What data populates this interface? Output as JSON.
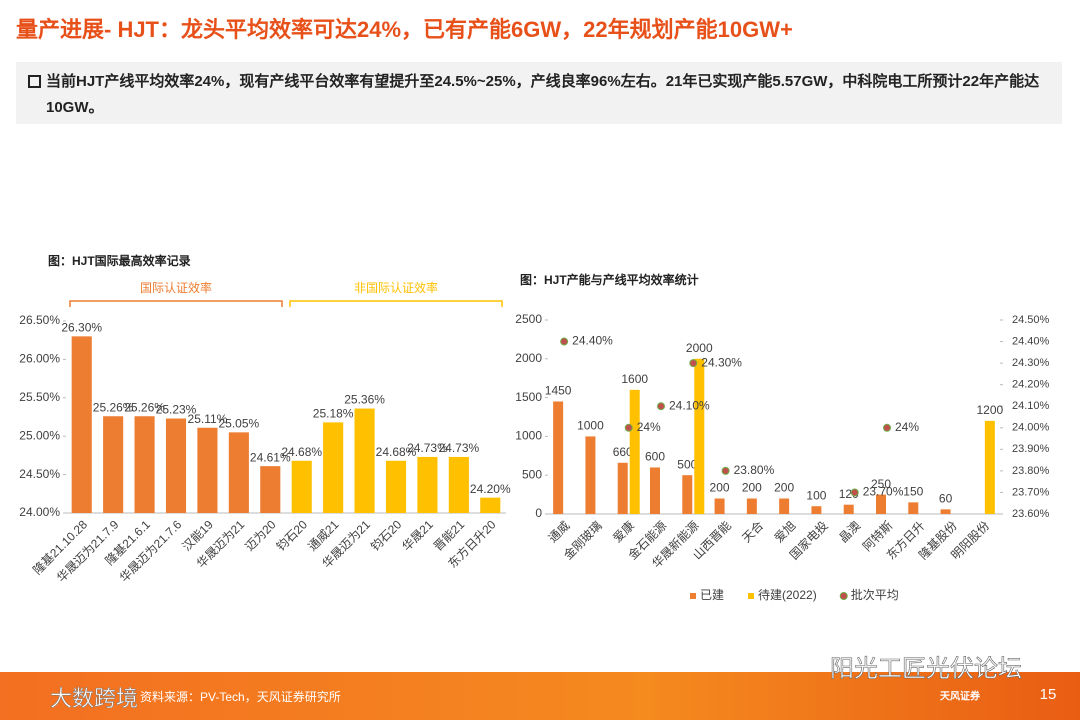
{
  "header": {
    "title": "量产进展- HJT：龙头平均效率可达24%，已有产能6GW，22年规划产能10GW+"
  },
  "summary": "当前HJT产线平均效率24%，现有产线平台效率有望提升至24.5%~25%，产线良率96%左右。21年已实现产能5.57GW，中科院电工所预计22年产能达10GW。",
  "chart_data": [
    {
      "type": "bar",
      "title": "图：HJT国际最高效率记录",
      "categories": [
        "隆基21.10.28",
        "华晟迈为21.7.9",
        "隆基21.6.1",
        "华晟迈为21.7.6",
        "汉能19",
        "华晟迈为21",
        "迈为20",
        "钧石20",
        "通威21",
        "华晟迈为21",
        "钧石20",
        "华晟21",
        "晋能21",
        "东方日升20"
      ],
      "values": [
        26.3,
        25.26,
        25.26,
        25.23,
        25.11,
        25.05,
        24.61,
        24.68,
        25.18,
        25.36,
        24.68,
        24.73,
        24.73,
        24.2
      ],
      "value_labels": [
        "26.30%",
        "25.26%",
        "25.26%",
        "25.23%",
        "25.11%",
        "25.05%",
        "24.61%",
        "24.68%",
        "25.18%",
        "25.36%",
        "24.68%",
        "24.73%",
        "24.73%",
        "24.20%"
      ],
      "colors": [
        "#ed7d31",
        "#ed7d31",
        "#ed7d31",
        "#ed7d31",
        "#ed7d31",
        "#ed7d31",
        "#ed7d31",
        "#ffc000",
        "#ffc000",
        "#ffc000",
        "#ffc000",
        "#ffc000",
        "#ffc000",
        "#ffc000"
      ],
      "groups": [
        {
          "label": "国际认证效率",
          "color": "#ed7d31"
        },
        {
          "label": "非国际认证效率",
          "color": "#ffc000"
        }
      ],
      "ylim": [
        24,
        26.5
      ],
      "yticks": [
        {
          "value": 24,
          "label": "24.00%"
        },
        {
          "value": 24.5,
          "label": "24.50%"
        },
        {
          "value": 25,
          "label": "25.00%"
        },
        {
          "value": 25.5,
          "label": "25.50%"
        },
        {
          "value": 26,
          "label": "26.00%"
        },
        {
          "value": 26.5,
          "label": "26.50%"
        }
      ]
    },
    {
      "type": "combo",
      "title": "图：HJT产能与产线平均效率统计",
      "categories": [
        "通威",
        "金刚玻璃",
        "爱康",
        "金石能源",
        "华晟新能源",
        "山西晋能",
        "天合",
        "爱旭",
        "国家电投",
        "晶澳",
        "阿特斯",
        "东方日升",
        "隆基股份",
        "明阳股份"
      ],
      "series": [
        {
          "name": "已建",
          "type": "bar",
          "color": "#ed7d31",
          "values": [
            1450,
            1000,
            660,
            600,
            500,
            200,
            200,
            200,
            100,
            120,
            250,
            150,
            60,
            null
          ]
        },
        {
          "name": "待建(2022)",
          "type": "bar",
          "color": "#ffc000",
          "values": [
            null,
            null,
            1600,
            null,
            2000,
            null,
            null,
            null,
            null,
            null,
            null,
            null,
            null,
            1200
          ]
        },
        {
          "name": "批次平均",
          "type": "scatter",
          "axis": "y2",
          "color": "#c0504d",
          "values": [
            24.4,
            null,
            24,
            24.1,
            24.3,
            23.8,
            null,
            null,
            null,
            23.7,
            24,
            null,
            null,
            null
          ],
          "value_labels": [
            "24.40%",
            null,
            "24%",
            "24.10%",
            "24.30%",
            "23.80%",
            null,
            null,
            null,
            "23.70%",
            "24%",
            null,
            null,
            null
          ]
        }
      ],
      "ylim": [
        0,
        2500
      ],
      "yticks": [
        0,
        500,
        1000,
        1500,
        2000,
        2500
      ],
      "y2lim": [
        23.6,
        24.5
      ],
      "y2ticks": [
        {
          "value": 23.6,
          "label": "23.60%"
        },
        {
          "value": 23.7,
          "label": "23.70%"
        },
        {
          "value": 23.8,
          "label": "23.80%"
        },
        {
          "value": 23.9,
          "label": "23.90%"
        },
        {
          "value": 24,
          "label": "24.00%"
        },
        {
          "value": 24.1,
          "label": "24.10%"
        },
        {
          "value": 24.2,
          "label": "24.20%"
        },
        {
          "value": 24.3,
          "label": "24.30%"
        },
        {
          "value": 24.4,
          "label": "24.40%"
        },
        {
          "value": 24.5,
          "label": "24.50%"
        }
      ],
      "legend": "bottom"
    }
  ],
  "footer": {
    "source": "资料来源：PV-Tech，天风证券研究所",
    "page": "15",
    "brand": "天风证券",
    "watermark": "阳光工匠光伏论坛",
    "watermark2": "大数跨境"
  }
}
